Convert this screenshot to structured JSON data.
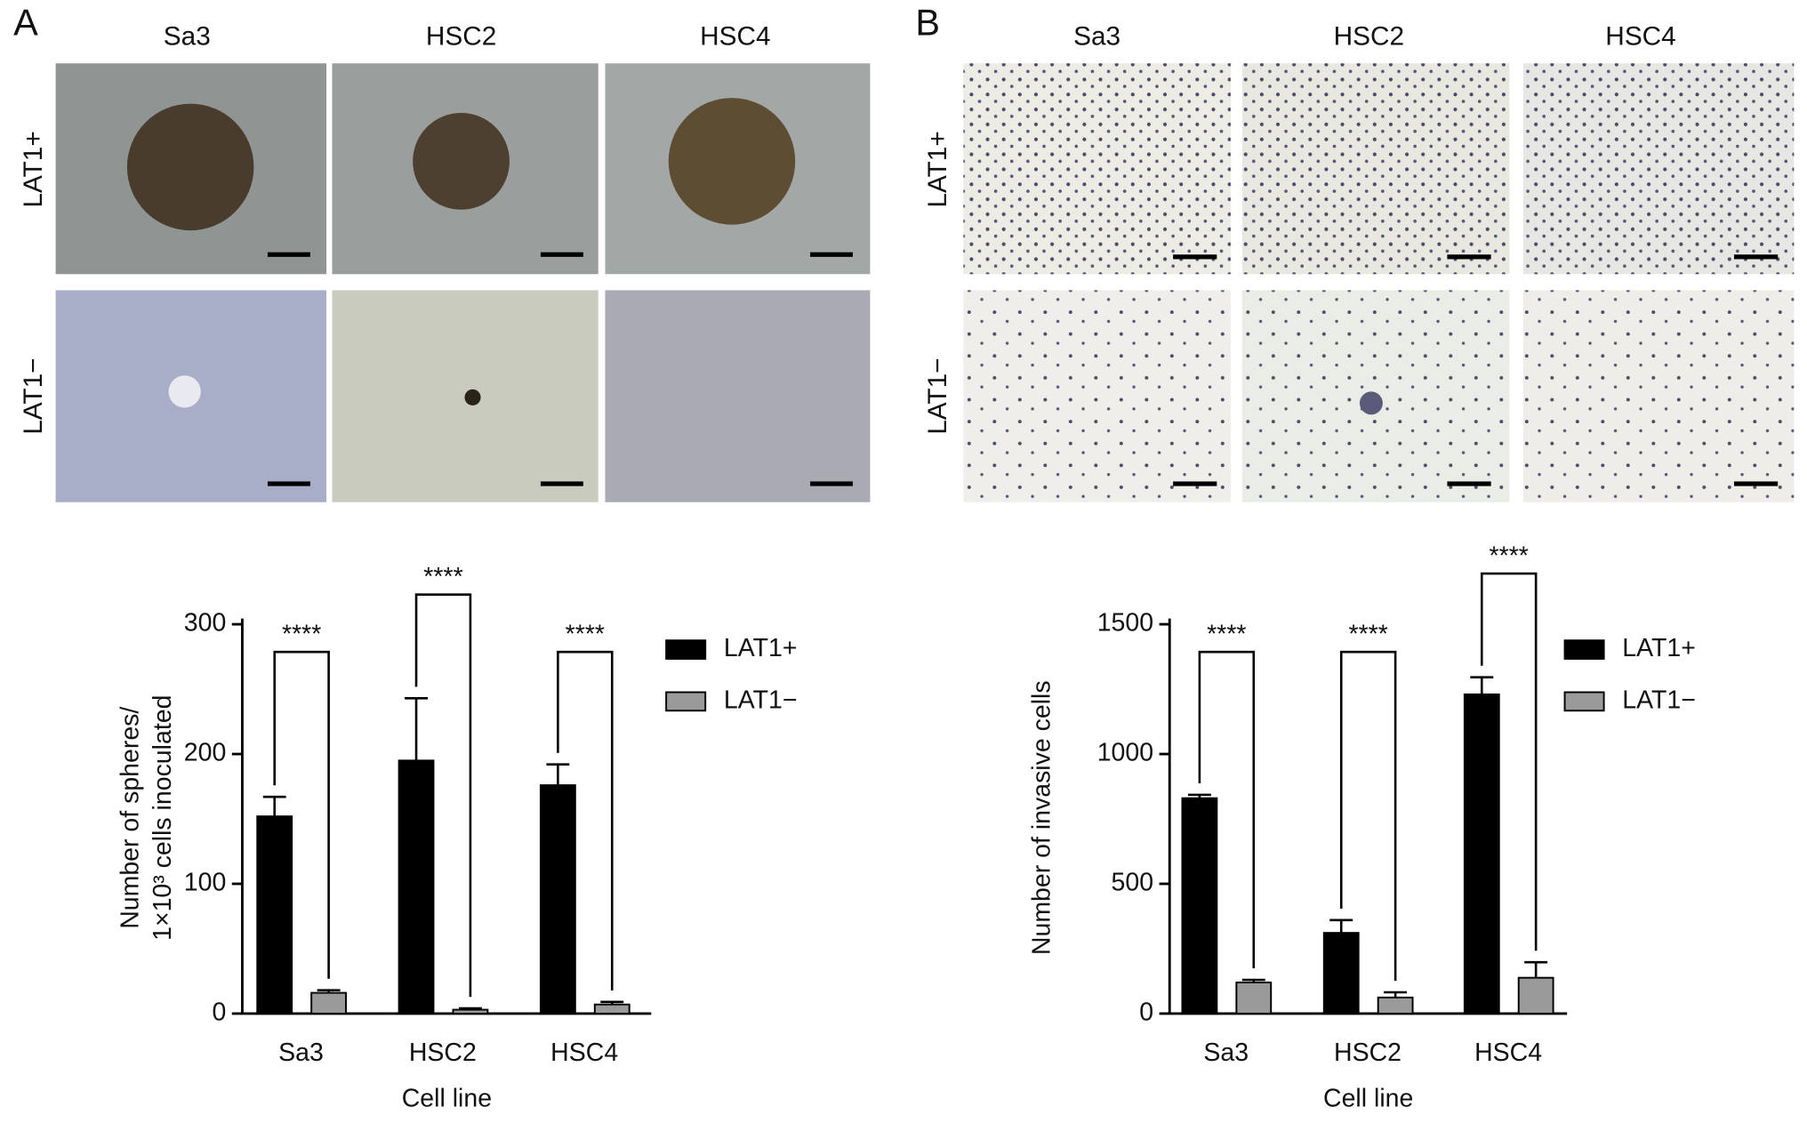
{
  "panels": [
    {
      "label": "A",
      "columns": [
        "Sa3",
        "HSC2",
        "HSC4"
      ],
      "rows": [
        "LAT1+",
        "LAT1−"
      ]
    },
    {
      "label": "B",
      "columns": [
        "Sa3",
        "HSC2",
        "HSC4"
      ],
      "rows": [
        "LAT1+",
        "LAT1−"
      ]
    }
  ],
  "chart_data": [
    {
      "type": "bar",
      "categories": [
        "Sa3",
        "HSC2",
        "HSC4"
      ],
      "series": [
        {
          "name": "LAT1+",
          "color": "#000000",
          "values": [
            152,
            195,
            176
          ],
          "errors": [
            15,
            48,
            16
          ]
        },
        {
          "name": "LAT1−",
          "color": "#9a9a9a",
          "values": [
            16,
            3,
            7
          ],
          "errors": [
            2,
            1,
            2
          ]
        }
      ],
      "annotations": [
        "****",
        "****",
        "****"
      ],
      "xlabel": "Cell line",
      "ylabel": [
        "Number of spheres/",
        "1×10³ cells inoculated"
      ],
      "ylim": [
        0,
        300
      ],
      "yticks": [
        0,
        100,
        200,
        300
      ],
      "legend": "right"
    },
    {
      "type": "bar",
      "categories": [
        "Sa3",
        "HSC2",
        "HSC4"
      ],
      "series": [
        {
          "name": "LAT1+",
          "color": "#000000",
          "values": [
            830,
            311,
            1230
          ],
          "errors": [
            13,
            49,
            66
          ]
        },
        {
          "name": "LAT1−",
          "color": "#9a9a9a",
          "values": [
            120,
            62,
            138
          ],
          "errors": [
            10,
            20,
            60
          ]
        }
      ],
      "annotations": [
        "****",
        "****",
        "****"
      ],
      "xlabel": "Cell line",
      "ylabel": [
        "Number of invasive cells"
      ],
      "ylim": [
        0,
        1500
      ],
      "yticks": [
        0,
        500,
        1000,
        1500
      ],
      "legend": "right"
    }
  ]
}
